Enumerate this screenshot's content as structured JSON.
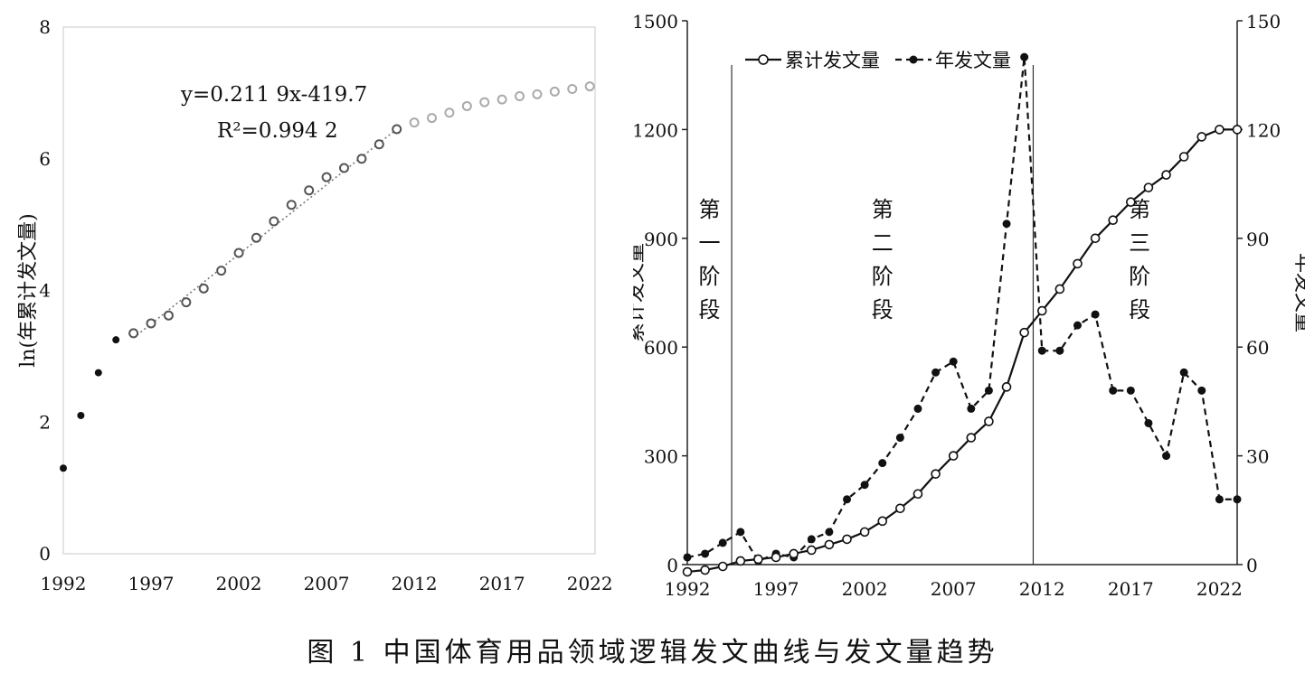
{
  "caption": "图 1   中国体育用品领域逻辑发文曲线与发文量趋势",
  "chart_data": [
    {
      "type": "scatter",
      "ylabel": "ln(年累计发文量)",
      "xlabel": "",
      "x_ticks": [
        "1992",
        "1997",
        "2002",
        "2007",
        "2012",
        "2017",
        "2022"
      ],
      "y_ticks": [
        "0",
        "2",
        "4",
        "6",
        "8"
      ],
      "xlim": [
        1992,
        2022.3
      ],
      "ylim": [
        0,
        8
      ],
      "equation": "y=0.211 9x-419.7",
      "r_squared": "R²=0.994 2",
      "series": [
        {
          "marker": "filled",
          "x": [
            1992,
            1993,
            1994,
            1995
          ],
          "y": [
            1.3,
            2.1,
            2.75,
            3.25
          ]
        },
        {
          "marker": "open",
          "x": [
            1996,
            1997,
            1998,
            1999,
            2000,
            2001,
            2002,
            2003,
            2004,
            2005,
            2006,
            2007,
            2008,
            2009,
            2010,
            2011
          ],
          "y": [
            3.35,
            3.5,
            3.62,
            3.82,
            4.03,
            4.3,
            4.57,
            4.8,
            5.05,
            5.3,
            5.52,
            5.72,
            5.86,
            6.0,
            6.22,
            6.45
          ]
        },
        {
          "marker": "open-grey",
          "x": [
            2012,
            2013,
            2014,
            2015,
            2016,
            2017,
            2018,
            2019,
            2020,
            2021,
            2022
          ],
          "y": [
            6.55,
            6.62,
            6.7,
            6.8,
            6.86,
            6.9,
            6.95,
            6.98,
            7.02,
            7.06,
            7.1
          ]
        }
      ],
      "trendline": {
        "x": [
          1996,
          2011
        ],
        "y": [
          3.28,
          6.45
        ]
      }
    },
    {
      "type": "line",
      "ylabel": "累计发文量",
      "y2label": "年发文量",
      "x_ticks": [
        "1992",
        "1997",
        "2002",
        "2007",
        "2012",
        "2017",
        "2022"
      ],
      "y_ticks": [
        "0",
        "300",
        "600",
        "900",
        "1200",
        "1500"
      ],
      "y2_ticks": [
        "0",
        "30",
        "60",
        "90",
        "120",
        "150"
      ],
      "xlim": [
        1992,
        2023
      ],
      "ylim": [
        0,
        1500
      ],
      "y2lim": [
        0,
        150
      ],
      "legend": [
        "累计发文量",
        "年发文量"
      ],
      "legend_position": "top-left",
      "x": [
        1992,
        1993,
        1994,
        1995,
        1996,
        1997,
        1998,
        1999,
        2000,
        2001,
        2002,
        2003,
        2004,
        2005,
        2006,
        2007,
        2008,
        2009,
        2010,
        2011,
        2012,
        2013,
        2014,
        2015,
        2016,
        2017,
        2018,
        2019,
        2020,
        2021,
        2022,
        2023
      ],
      "series": [
        {
          "name": "累计发文量",
          "axis": "left",
          "style": "solid-open",
          "values": [
            -20,
            -15,
            -5,
            10,
            15,
            20,
            30,
            40,
            55,
            70,
            90,
            120,
            155,
            195,
            250,
            300,
            350,
            395,
            490,
            640,
            700,
            760,
            830,
            900,
            950,
            1000,
            1040,
            1075,
            1125,
            1180,
            1200,
            1200
          ]
        },
        {
          "name": "年发文量",
          "axis": "right",
          "style": "dashed-filled",
          "values": [
            2,
            3,
            6,
            9,
            1,
            3,
            2,
            7,
            9,
            18,
            22,
            28,
            35,
            43,
            53,
            56,
            43,
            48,
            94,
            140,
            59,
            59,
            66,
            69,
            48,
            48,
            39,
            30,
            53,
            48,
            18,
            18
          ]
        }
      ],
      "phase_lines": [
        1994.5,
        2011.5
      ],
      "phases": [
        {
          "chars": [
            "第",
            "一",
            "阶",
            "段"
          ]
        },
        {
          "chars": [
            "第",
            "二",
            "阶",
            "段"
          ]
        },
        {
          "chars": [
            "第",
            "三",
            "阶",
            "段"
          ]
        }
      ]
    }
  ]
}
